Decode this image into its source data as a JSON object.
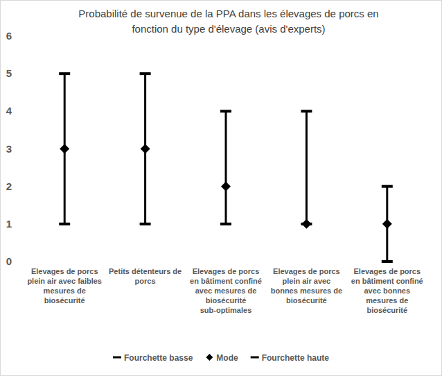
{
  "chart_data": {
    "type": "range",
    "title": "Probabilité de survenue de la PPA dans les élevages de porcs en fonction du type d'élevage (avis d'experts)",
    "categories": [
      "Elevages de porcs plein air avec faibles mesures de biosécurité",
      "Petits détenteurs de porcs",
      "Elevages de porcs en bâtiment confiné avec mesures de biosécurité sub-optimales",
      "Elevages de porcs plein air avec bonnes mesures de biosécurité",
      "Elevages de porcs en bâtiment confiné avec bonnes mesures de biosécurité"
    ],
    "series": [
      {
        "name": "Fourchette basse",
        "color": "#000000",
        "marker": "dash",
        "values": [
          1,
          1,
          1,
          1,
          0
        ]
      },
      {
        "name": "Mode",
        "color": "#000000",
        "marker": "diamond",
        "values": [
          3,
          3,
          2,
          1,
          1
        ]
      },
      {
        "name": "Fourchette haute",
        "color": "#000000",
        "marker": "dash",
        "values": [
          5,
          5,
          4,
          4,
          2
        ]
      }
    ],
    "ylim": [
      0,
      6
    ],
    "yticks": [
      0,
      1,
      2,
      3,
      4,
      5,
      6
    ],
    "grid": false,
    "legend": "bottom"
  }
}
